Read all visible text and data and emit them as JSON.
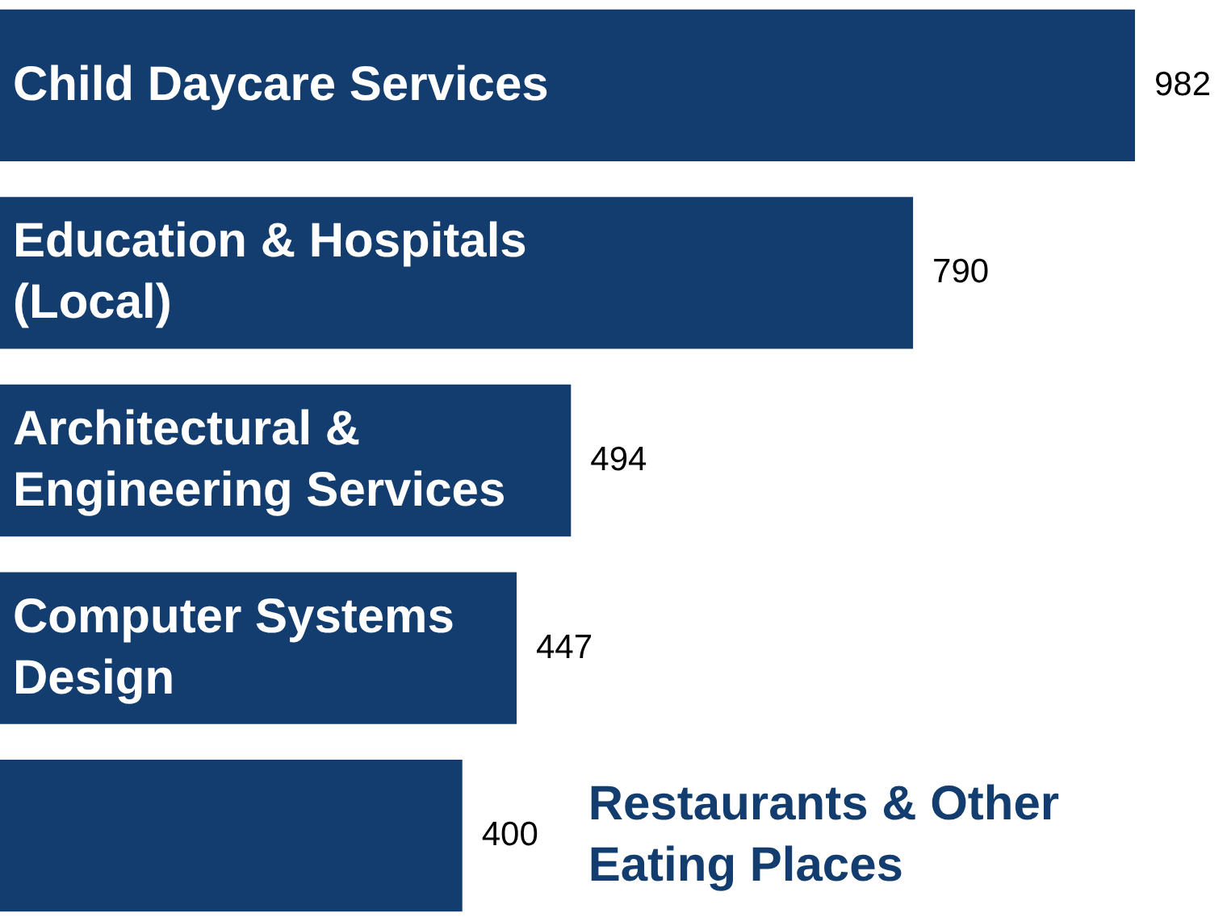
{
  "chart_data": {
    "type": "bar",
    "orientation": "horizontal",
    "data_labels": true,
    "categories": [
      "Child Daycare Services",
      "Education & Hospitals (Local)",
      "Architectural & Engineering Services",
      "Computer Systems Design",
      "Restaurants & Other Eating Places"
    ],
    "values": [
      982,
      790,
      494,
      447,
      400
    ],
    "color": "#133d6e"
  }
}
